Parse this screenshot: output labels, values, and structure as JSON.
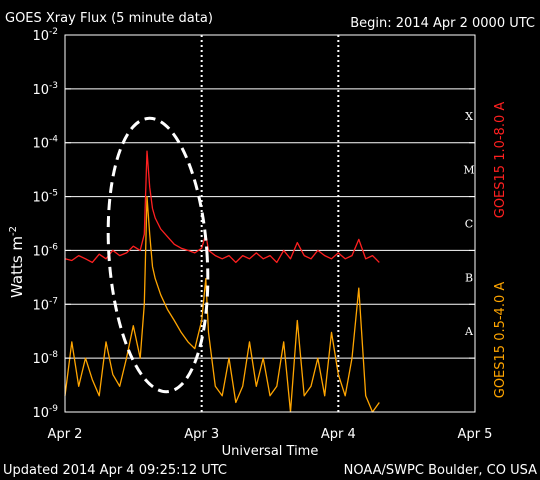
{
  "chart_data": {
    "type": "line",
    "title": "GOES Xray Flux (5 minute data)",
    "begin_label": "Begin:  2014 Apr 2 0000 UTC",
    "ylabel": "Watts m",
    "ylabel_sup": "-2",
    "xlabel": "Universal Time",
    "footer_left": "Updated 2014 Apr  4 09:25:12 UTC",
    "footer_right": "NOAA/SWPC Boulder, CO USA",
    "yscale": "log",
    "ylim": [
      1e-09,
      0.01
    ],
    "yticks": [
      {
        "base": "10",
        "exp": "-9"
      },
      {
        "base": "10",
        "exp": "-8"
      },
      {
        "base": "10",
        "exp": "-7"
      },
      {
        "base": "10",
        "exp": "-6"
      },
      {
        "base": "10",
        "exp": "-5"
      },
      {
        "base": "10",
        "exp": "-4"
      },
      {
        "base": "10",
        "exp": "-3"
      },
      {
        "base": "10",
        "exp": "-2"
      }
    ],
    "xlim_days": [
      0,
      3
    ],
    "xticks": [
      "Apr 2",
      "Apr 3",
      "Apr 4",
      "Apr 5"
    ],
    "flare_classes": [
      {
        "label": "A",
        "value": 1e-08
      },
      {
        "label": "B",
        "value": 1e-07
      },
      {
        "label": "C",
        "value": 1e-06
      },
      {
        "label": "M",
        "value": 1e-05
      },
      {
        "label": "X",
        "value": 0.0001
      }
    ],
    "series": [
      {
        "name": "GOES15 1.0-8.0 A",
        "color": "#ff2020",
        "x": [
          0.0,
          0.05,
          0.1,
          0.15,
          0.2,
          0.25,
          0.3,
          0.35,
          0.4,
          0.45,
          0.5,
          0.55,
          0.58,
          0.6,
          0.62,
          0.64,
          0.66,
          0.7,
          0.75,
          0.8,
          0.85,
          0.9,
          0.95,
          1.0,
          1.03,
          1.05,
          1.1,
          1.15,
          1.2,
          1.25,
          1.3,
          1.35,
          1.4,
          1.45,
          1.5,
          1.55,
          1.6,
          1.65,
          1.7,
          1.75,
          1.8,
          1.85,
          1.9,
          1.95,
          2.0,
          2.05,
          2.1,
          2.15,
          2.2,
          2.25,
          2.3
        ],
        "y": [
          7e-07,
          6.5e-07,
          8e-07,
          7e-07,
          6e-07,
          8.5e-07,
          7e-07,
          1e-06,
          8e-07,
          9e-07,
          1.2e-06,
          1e-06,
          2e-06,
          7e-05,
          1.5e-05,
          6e-06,
          4e-06,
          2.5e-06,
          1.8e-06,
          1.3e-06,
          1.1e-06,
          1e-06,
          9e-07,
          1.1e-06,
          2e-06,
          1e-06,
          8e-07,
          7e-07,
          8e-07,
          6e-07,
          8e-07,
          7e-07,
          9e-07,
          7e-07,
          8e-07,
          6e-07,
          1e-06,
          7e-07,
          1.4e-06,
          8e-07,
          7e-07,
          1e-06,
          8e-07,
          7e-07,
          9e-07,
          7e-07,
          8e-07,
          1.6e-06,
          7e-07,
          8e-07,
          6e-07
        ]
      },
      {
        "name": "GOES15 0.5-4.0 A",
        "color": "#ffa500",
        "x": [
          0.0,
          0.05,
          0.1,
          0.15,
          0.2,
          0.25,
          0.3,
          0.35,
          0.4,
          0.45,
          0.5,
          0.55,
          0.58,
          0.6,
          0.62,
          0.64,
          0.66,
          0.7,
          0.75,
          0.8,
          0.85,
          0.9,
          0.95,
          1.0,
          1.03,
          1.05,
          1.1,
          1.15,
          1.2,
          1.25,
          1.3,
          1.35,
          1.4,
          1.45,
          1.5,
          1.55,
          1.6,
          1.65,
          1.7,
          1.75,
          1.8,
          1.85,
          1.9,
          1.95,
          2.0,
          2.05,
          2.1,
          2.15,
          2.2,
          2.25,
          2.3
        ],
        "y": [
          2e-09,
          2e-08,
          3e-09,
          1e-08,
          4e-09,
          2e-09,
          2e-08,
          5e-09,
          3e-09,
          1e-08,
          4e-08,
          1e-08,
          1e-07,
          1e-05,
          2e-06,
          5e-07,
          3e-07,
          1.5e-07,
          8e-08,
          5e-08,
          3e-08,
          2e-08,
          1.5e-08,
          5e-08,
          3e-07,
          3e-08,
          3e-09,
          2e-09,
          1e-08,
          1.5e-09,
          3e-09,
          2e-08,
          3e-09,
          1e-08,
          2e-09,
          3e-09,
          2e-08,
          1e-09,
          5e-08,
          2e-09,
          3e-09,
          1e-08,
          2e-09,
          3e-08,
          5e-09,
          2e-09,
          1e-08,
          2e-07,
          2e-09,
          1e-09,
          1.5e-09
        ]
      }
    ]
  }
}
